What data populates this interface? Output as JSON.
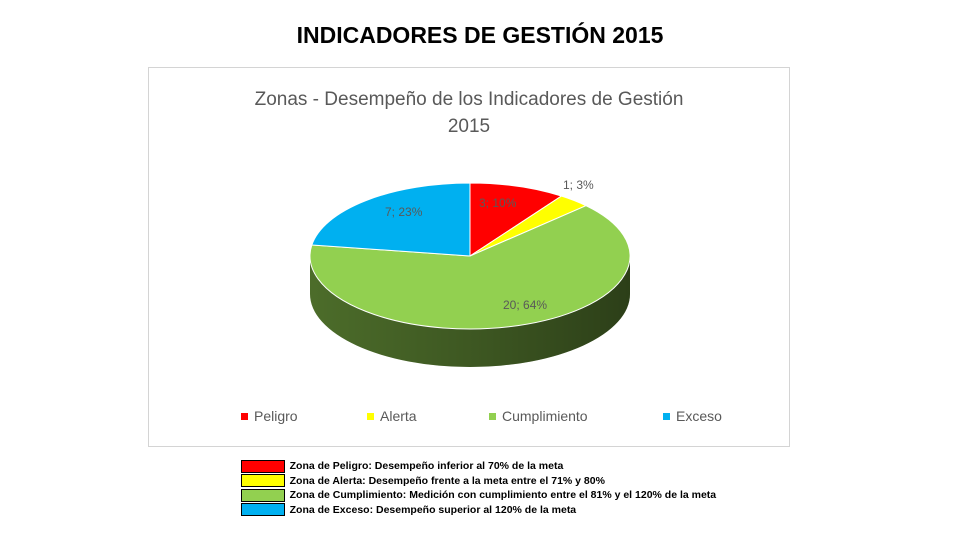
{
  "slide": {
    "title": "INDICADORES DE GESTIÓN 2015"
  },
  "chart_data": {
    "type": "pie",
    "title_lines": [
      "Zonas - Desempeño de los Indicadores de Gestión",
      "2015"
    ],
    "categories": [
      "Peligro",
      "Alerta",
      "Cumplimiento",
      "Exceso"
    ],
    "values": [
      3,
      1,
      20,
      7
    ],
    "percents": [
      10,
      3,
      64,
      23
    ],
    "data_labels": [
      "3; 10%",
      "1; 3%",
      "20; 64%",
      "7; 23%"
    ],
    "colors": [
      "#ff0000",
      "#ffff00",
      "#92d050",
      "#00b0f0"
    ],
    "legend_position": "bottom",
    "style": "3d"
  },
  "zones": [
    {
      "color": "#ff0000",
      "text": "Zona de Peligro: Desempeño inferior al 70% de la meta"
    },
    {
      "color": "#ffff00",
      "text": "Zona de Alerta: Desempeño frente a la meta entre el 71% y 80%"
    },
    {
      "color": "#92d050",
      "text": "Zona de Cumplimiento: Medición con cumplimiento entre el 81% y el 120% de la meta"
    },
    {
      "color": "#00b0f0",
      "text": "Zona de Exceso: Desempeño superior al 120% de la meta"
    }
  ]
}
